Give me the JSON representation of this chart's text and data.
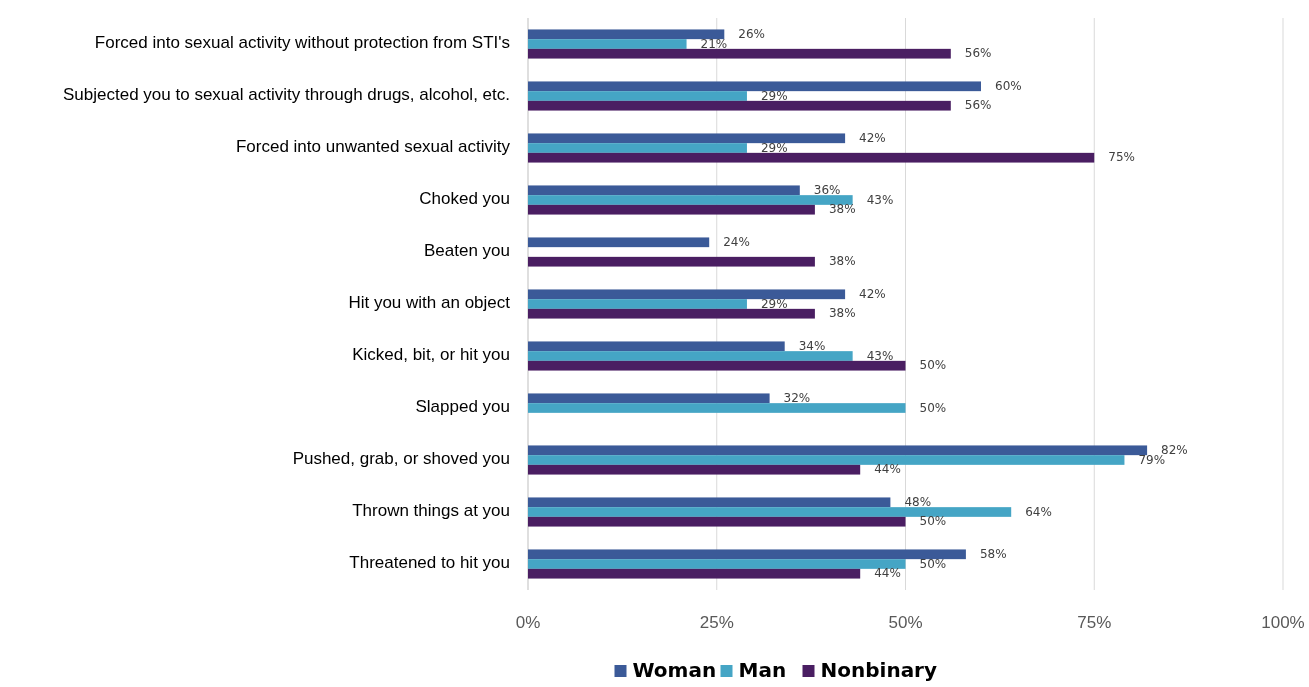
{
  "chart_data": {
    "type": "bar",
    "orientation": "horizontal",
    "categories": [
      "Forced into sexual activity without protection from STI's",
      "Subjected you to sexual activity through drugs, alcohol, etc.",
      "Forced into unwanted sexual activity",
      "Choked you",
      "Beaten you",
      "Hit you with an object",
      "Kicked, bit, or hit you",
      "Slapped you",
      "Pushed, grab, or shoved you",
      "Thrown things at you",
      "Threatened to hit you"
    ],
    "series": [
      {
        "name": "Woman",
        "color": "#3b5a98",
        "values": [
          26,
          60,
          42,
          36,
          24,
          42,
          34,
          32,
          82,
          48,
          58
        ],
        "value_labels": [
          "26%",
          "60%",
          "42%",
          "36%",
          "24%",
          "42%",
          "34%",
          "32%",
          "82%",
          "48%",
          "58%"
        ]
      },
      {
        "name": "Man",
        "color": "#45a5c5",
        "values": [
          21,
          29,
          29,
          43,
          null,
          29,
          43,
          50,
          79,
          64,
          50
        ],
        "value_labels": [
          "21%",
          "29%",
          "29%",
          "43%",
          null,
          "29%",
          "43%",
          "50%",
          "79%",
          "64%",
          "50%"
        ]
      },
      {
        "name": "Nonbinary",
        "color": "#4a1e62",
        "values": [
          56,
          56,
          75,
          38,
          38,
          38,
          50,
          null,
          44,
          50,
          44
        ],
        "value_labels": [
          "56%",
          "56%",
          "75%",
          "38%",
          "38%",
          "38%",
          "50%",
          null,
          "44%",
          "50%",
          "44%"
        ]
      }
    ],
    "xlim": [
      0,
      100
    ],
    "xticks": [
      {
        "value": 0,
        "label": "0%"
      },
      {
        "value": 25,
        "label": "25%"
      },
      {
        "value": 50,
        "label": "50%"
      },
      {
        "value": 75,
        "label": "75%"
      },
      {
        "value": 100,
        "label": "100%"
      }
    ],
    "grid": "x",
    "legend": "bottom"
  }
}
